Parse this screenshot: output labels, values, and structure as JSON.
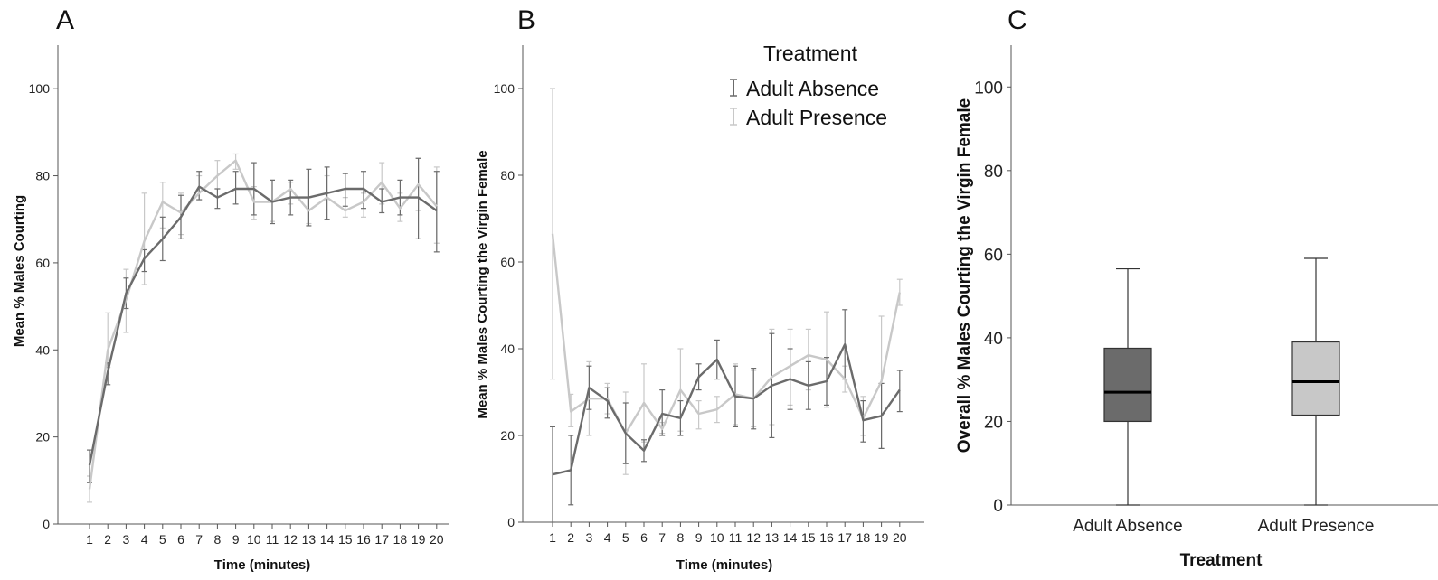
{
  "colors": {
    "absence": "#6b6b6b",
    "presence": "#c8c8c8",
    "axis": "#555555",
    "median": "#000000"
  },
  "chart_data": [
    {
      "panel": "A",
      "type": "line",
      "xlabel": "Time (minutes)",
      "ylabel": "Mean % Males Courting",
      "ylim": [
        0,
        110
      ],
      "yticks": [
        0,
        20,
        40,
        60,
        80,
        100
      ],
      "x": [
        1,
        2,
        3,
        4,
        5,
        6,
        7,
        8,
        9,
        10,
        11,
        12,
        13,
        14,
        15,
        16,
        17,
        18,
        19,
        20
      ],
      "series": [
        {
          "name": "Adult Absence",
          "values": [
            13.5,
            35,
            53,
            61,
            65.5,
            70.5,
            77.5,
            75,
            77,
            77,
            74,
            75,
            75,
            76,
            77,
            77,
            74,
            75,
            75,
            72
          ],
          "err_low": [
            9.5,
            32,
            49.5,
            58,
            60.5,
            65.5,
            74.5,
            72.5,
            73.5,
            71,
            69,
            71,
            68.5,
            70,
            73,
            72.5,
            71.5,
            71,
            65.5,
            62.5
          ],
          "err_high": [
            17,
            37,
            56.5,
            63,
            70.5,
            75.5,
            81,
            77,
            81,
            83,
            79,
            79,
            81.5,
            82,
            80.5,
            81,
            77,
            79,
            84,
            81
          ]
        },
        {
          "name": "Adult Presence",
          "values": [
            8,
            40,
            51.5,
            65,
            74,
            71.5,
            76,
            80,
            83.5,
            74,
            74,
            77,
            72,
            75,
            72,
            74,
            78.5,
            72.5,
            78,
            73
          ],
          "err_low": [
            5,
            36,
            44,
            55,
            68,
            66.5,
            74.5,
            77,
            81.5,
            70,
            69.5,
            73.5,
            69,
            70,
            70.5,
            70.5,
            73.5,
            69.5,
            72,
            64.5
          ],
          "err_high": [
            11,
            48.5,
            58.5,
            76,
            78.5,
            76,
            80,
            83.5,
            85,
            77.5,
            79,
            78.5,
            75,
            80,
            75,
            76,
            83,
            76,
            84,
            82
          ]
        }
      ]
    },
    {
      "panel": "B",
      "type": "line",
      "xlabel": "Time (minutes)",
      "ylabel": "Mean % Males Courting the Virgin Female",
      "ylim": [
        0,
        110
      ],
      "yticks": [
        0,
        20,
        40,
        60,
        80,
        100
      ],
      "legend_title": "Treatment",
      "legend_position": "top-right",
      "x": [
        1,
        2,
        3,
        4,
        5,
        6,
        7,
        8,
        9,
        10,
        11,
        12,
        13,
        14,
        15,
        16,
        17,
        18,
        19,
        20
      ],
      "series": [
        {
          "name": "Adult Absence",
          "values": [
            11,
            12,
            31,
            28,
            20.5,
            16.5,
            25,
            24,
            33.5,
            37.5,
            29,
            28.5,
            31.5,
            33,
            31.5,
            32.5,
            41,
            23.5,
            24.5,
            30.5
          ],
          "err_low": [
            0,
            4,
            26,
            24,
            13.5,
            14,
            20,
            20,
            30.5,
            33,
            22,
            21.5,
            19.5,
            26,
            26,
            27,
            33,
            18.5,
            17,
            25.5
          ],
          "err_high": [
            22,
            20,
            36,
            31,
            27.5,
            19,
            30.5,
            28,
            36.5,
            42,
            36,
            35.5,
            43.5,
            40,
            37,
            38,
            49,
            28,
            32,
            35
          ]
        },
        {
          "name": "Adult Presence",
          "values": [
            66.5,
            25.5,
            28.5,
            28.5,
            20.5,
            27.5,
            21.5,
            30.5,
            25,
            26,
            29.5,
            28.5,
            33.5,
            36,
            38.5,
            37.5,
            33,
            24,
            32.5,
            53
          ],
          "err_low": [
            33,
            22,
            20,
            25,
            11,
            18.5,
            20.5,
            21,
            21.5,
            23,
            22.5,
            22,
            22.5,
            27,
            30.5,
            26.5,
            30,
            20,
            17,
            50
          ],
          "err_high": [
            100,
            29.5,
            37,
            32,
            30,
            36.5,
            23,
            40,
            28,
            29,
            36.5,
            35,
            44.5,
            44.5,
            44.5,
            48.5,
            36,
            29,
            47.5,
            56
          ]
        }
      ]
    },
    {
      "panel": "C",
      "type": "boxplot",
      "xlabel": "Treatment",
      "ylabel": "Overall % Males Courting the Virgin Female",
      "ylim": [
        0,
        110
      ],
      "yticks": [
        0,
        20,
        40,
        60,
        80,
        100
      ],
      "categories": [
        "Adult Absence",
        "Adult Presence"
      ],
      "boxes": [
        {
          "name": "Adult Absence",
          "min": 0,
          "q1": 20,
          "median": 27,
          "q3": 37.5,
          "max": 56.5
        },
        {
          "name": "Adult Presence",
          "min": 0,
          "q1": 21.5,
          "median": 29.5,
          "q3": 39,
          "max": 59
        }
      ]
    }
  ]
}
